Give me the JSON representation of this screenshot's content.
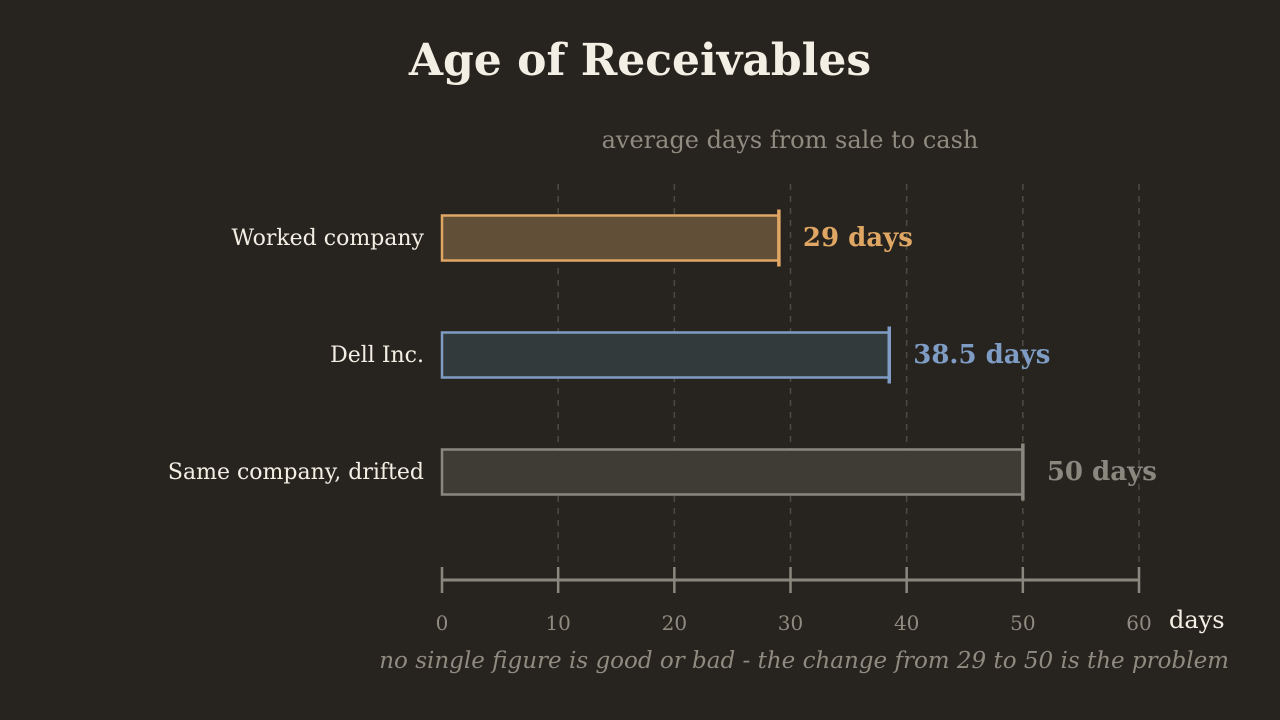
{
  "chart_data": {
    "type": "bar",
    "orientation": "horizontal",
    "title": "Age of Receivables",
    "subtitle": "average days from sale to cash",
    "categories": [
      "Worked company",
      "Dell Inc.",
      "Same company, drifted"
    ],
    "values": [
      29,
      38.5,
      50
    ],
    "value_labels": [
      "29 days",
      "38.5 days",
      "50 days"
    ],
    "colors": [
      "#e0a663",
      "#7f9cc4",
      "#8a877f"
    ],
    "fill_colors": [
      "#614f37",
      "#323a3c",
      "#3f3c35"
    ],
    "xlim": [
      0,
      60
    ],
    "x_ticks": [
      0,
      10,
      20,
      30,
      40,
      50,
      60
    ],
    "tick_labels": [
      "0",
      "10",
      "20",
      "30",
      "40",
      "50",
      "60"
    ],
    "xlabel": "days",
    "grid": "vertical-dashed",
    "footnote": "no single figure is good or bad - the change from 29 to 50 is the problem"
  },
  "colors": {
    "background": "#27241f",
    "text": "#f3efe4",
    "muted": "#8f8b80",
    "grid": "#4d4a43",
    "axis": "#8a877f"
  }
}
